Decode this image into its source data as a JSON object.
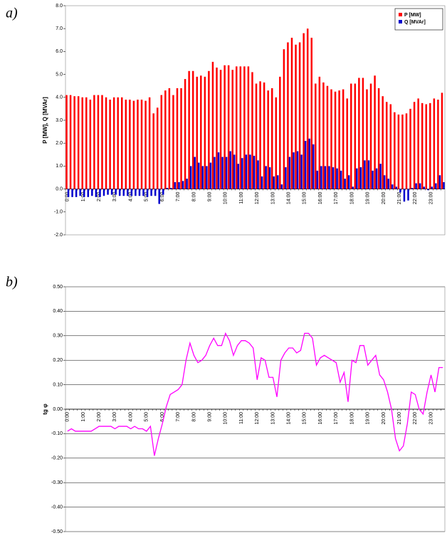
{
  "chart_data": [
    {
      "type": "bar",
      "label": "a)",
      "ylabel": "P [MW], Q [MVAr]",
      "categories": [
        "0:00",
        null,
        null,
        null,
        "1:00",
        null,
        null,
        null,
        "2:00",
        null,
        null,
        null,
        "3:00",
        null,
        null,
        null,
        "4:00",
        null,
        null,
        null,
        "5:00",
        null,
        null,
        null,
        "6:00",
        null,
        null,
        null,
        "7:00",
        null,
        null,
        null,
        "8:00",
        null,
        null,
        null,
        "9:00",
        null,
        null,
        null,
        "10:00",
        null,
        null,
        null,
        "11:00",
        null,
        null,
        null,
        "12:00",
        null,
        null,
        null,
        "13:00",
        null,
        null,
        null,
        "14:00",
        null,
        null,
        null,
        "15:00",
        null,
        null,
        null,
        "16:00",
        null,
        null,
        null,
        "17:00",
        null,
        null,
        null,
        "18:00",
        null,
        null,
        null,
        "19:00",
        null,
        null,
        null,
        "20:00",
        null,
        null,
        null,
        "21:00",
        null,
        null,
        null,
        "22:00",
        null,
        null,
        null,
        "23:00",
        null,
        null,
        null
      ],
      "series": [
        {
          "name": "P [MW]",
          "color": "#ff0000",
          "values": [
            4.1,
            4.1,
            4.05,
            4.05,
            4.0,
            4.0,
            3.9,
            4.1,
            4.1,
            4.1,
            4.0,
            3.9,
            4.0,
            4.0,
            4.0,
            3.9,
            3.9,
            3.85,
            3.9,
            3.9,
            3.85,
            4.0,
            3.3,
            3.55,
            4.1,
            4.3,
            4.4,
            4.1,
            4.4,
            4.4,
            4.8,
            5.15,
            5.15,
            4.9,
            4.95,
            4.9,
            5.15,
            5.55,
            5.3,
            5.2,
            5.4,
            5.4,
            5.2,
            5.35,
            5.35,
            5.35,
            5.35,
            5.1,
            4.6,
            4.7,
            4.65,
            4.3,
            4.4,
            4.0,
            4.9,
            6.1,
            6.4,
            6.6,
            6.3,
            6.4,
            6.8,
            7.0,
            6.6,
            4.6,
            4.9,
            4.65,
            4.5,
            4.35,
            4.25,
            4.3,
            4.35,
            3.95,
            4.6,
            4.6,
            4.85,
            4.85,
            4.35,
            4.6,
            4.95,
            4.4,
            4.05,
            3.8,
            3.7,
            3.35,
            3.25,
            3.25,
            3.3,
            3.5,
            3.8,
            3.95,
            3.75,
            3.7,
            3.75,
            3.95,
            3.9,
            4.2
          ]
        },
        {
          "name": "Q [MVAr]",
          "color": "#0000cc",
          "values": [
            -0.35,
            -0.35,
            -0.35,
            -0.3,
            -0.35,
            -0.35,
            -0.3,
            -0.35,
            -0.35,
            -0.3,
            -0.25,
            -0.25,
            -0.25,
            -0.3,
            -0.3,
            -0.3,
            -0.3,
            -0.3,
            -0.3,
            -0.3,
            -0.35,
            -0.3,
            -0.3,
            -0.65,
            -0.25,
            0.05,
            0.05,
            0.3,
            0.3,
            0.35,
            0.45,
            1.0,
            1.4,
            1.15,
            1.0,
            1.0,
            1.15,
            1.4,
            1.6,
            1.4,
            1.4,
            1.65,
            1.5,
            1.1,
            1.35,
            1.5,
            1.5,
            1.45,
            1.25,
            0.55,
            1.0,
            0.95,
            0.55,
            0.6,
            0.2,
            0.95,
            1.4,
            1.6,
            1.65,
            1.5,
            2.1,
            2.2,
            1.95,
            0.8,
            1.0,
            1.0,
            1.0,
            0.95,
            0.9,
            0.8,
            0.45,
            0.6,
            0.1,
            0.9,
            0.95,
            1.25,
            1.25,
            0.8,
            0.9,
            1.1,
            0.6,
            0.45,
            0.2,
            0.1,
            -0.15,
            -0.55,
            -0.5,
            0.05,
            0.25,
            0.25,
            0.1,
            -0.05,
            0.1,
            0.25,
            0.6,
            0.3
          ]
        }
      ],
      "ylim": [
        -2,
        8
      ],
      "yticks": [
        {
          "value": -2,
          "label": "-2.0"
        },
        {
          "value": -1,
          "label": "-1.0"
        },
        {
          "value": 0,
          "label": "0.0"
        },
        {
          "value": 1,
          "label": "1.0"
        },
        {
          "value": 2,
          "label": "2.0"
        },
        {
          "value": 3,
          "label": "3.0"
        },
        {
          "value": 4,
          "label": "4.0"
        },
        {
          "value": 5,
          "label": "5.0"
        },
        {
          "value": 6,
          "label": "6.0"
        },
        {
          "value": 7,
          "label": "7.0"
        },
        {
          "value": 8,
          "label": "8.0"
        }
      ],
      "grid": false,
      "legend": "top-right"
    },
    {
      "type": "line",
      "label": "b)",
      "ylabel": "tg φ",
      "categories": [
        "0:00",
        null,
        null,
        null,
        "1:00",
        null,
        null,
        null,
        "2:00",
        null,
        null,
        null,
        "3:00",
        null,
        null,
        null,
        "4:00",
        null,
        null,
        null,
        "5:00",
        null,
        null,
        null,
        "6:00",
        null,
        null,
        null,
        "7:00",
        null,
        null,
        null,
        "8:00",
        null,
        null,
        null,
        "9:00",
        null,
        null,
        null,
        "10:00",
        null,
        null,
        null,
        "11:00",
        null,
        null,
        null,
        "12:00",
        null,
        null,
        null,
        "13:00",
        null,
        null,
        null,
        "14:00",
        null,
        null,
        null,
        "15:00",
        null,
        null,
        null,
        "16:00",
        null,
        null,
        null,
        "17:00",
        null,
        null,
        null,
        "18:00",
        null,
        null,
        null,
        "19:00",
        null,
        null,
        null,
        "20:00",
        null,
        null,
        null,
        "21:00",
        null,
        null,
        null,
        "22:00",
        null,
        null,
        null,
        "23:00",
        null,
        null,
        null
      ],
      "color": "#ff00ff",
      "values": [
        -0.09,
        -0.08,
        -0.09,
        -0.09,
        -0.09,
        -0.09,
        -0.09,
        -0.08,
        -0.07,
        -0.07,
        -0.07,
        -0.07,
        -0.08,
        -0.07,
        -0.07,
        -0.07,
        -0.08,
        -0.07,
        -0.08,
        -0.08,
        -0.09,
        -0.07,
        -0.19,
        -0.12,
        -0.06,
        0.01,
        0.06,
        0.07,
        0.08,
        0.1,
        0.2,
        0.27,
        0.22,
        0.19,
        0.2,
        0.22,
        0.26,
        0.29,
        0.26,
        0.26,
        0.31,
        0.28,
        0.22,
        0.26,
        0.28,
        0.28,
        0.27,
        0.25,
        0.12,
        0.21,
        0.2,
        0.13,
        0.13,
        0.05,
        0.2,
        0.23,
        0.25,
        0.25,
        0.23,
        0.24,
        0.31,
        0.31,
        0.29,
        0.18,
        0.21,
        0.22,
        0.21,
        0.2,
        0.19,
        0.11,
        0.15,
        0.03,
        0.2,
        0.19,
        0.26,
        0.26,
        0.18,
        0.2,
        0.22,
        0.14,
        0.12,
        0.07,
        0.0,
        -0.12,
        -0.17,
        -0.15,
        -0.06,
        0.07,
        0.06,
        0.0,
        -0.02,
        0.07,
        0.14,
        0.07,
        0.17,
        0.17
      ],
      "ylim": [
        -0.5,
        0.5
      ],
      "yticks": [
        {
          "value": -0.5,
          "label": "-0.50"
        },
        {
          "value": -0.4,
          "label": "-0.40"
        },
        {
          "value": -0.3,
          "label": "-0.30"
        },
        {
          "value": -0.2,
          "label": "-0.20"
        },
        {
          "value": -0.1,
          "label": "-0.10"
        },
        {
          "value": 0,
          "label": "0.00"
        },
        {
          "value": 0.1,
          "label": "0.10"
        },
        {
          "value": 0.2,
          "label": "0.20"
        },
        {
          "value": 0.3,
          "label": "0.30"
        },
        {
          "value": 0.4,
          "label": "0.40"
        },
        {
          "value": 0.5,
          "label": "0.50"
        }
      ],
      "grid": true
    }
  ]
}
